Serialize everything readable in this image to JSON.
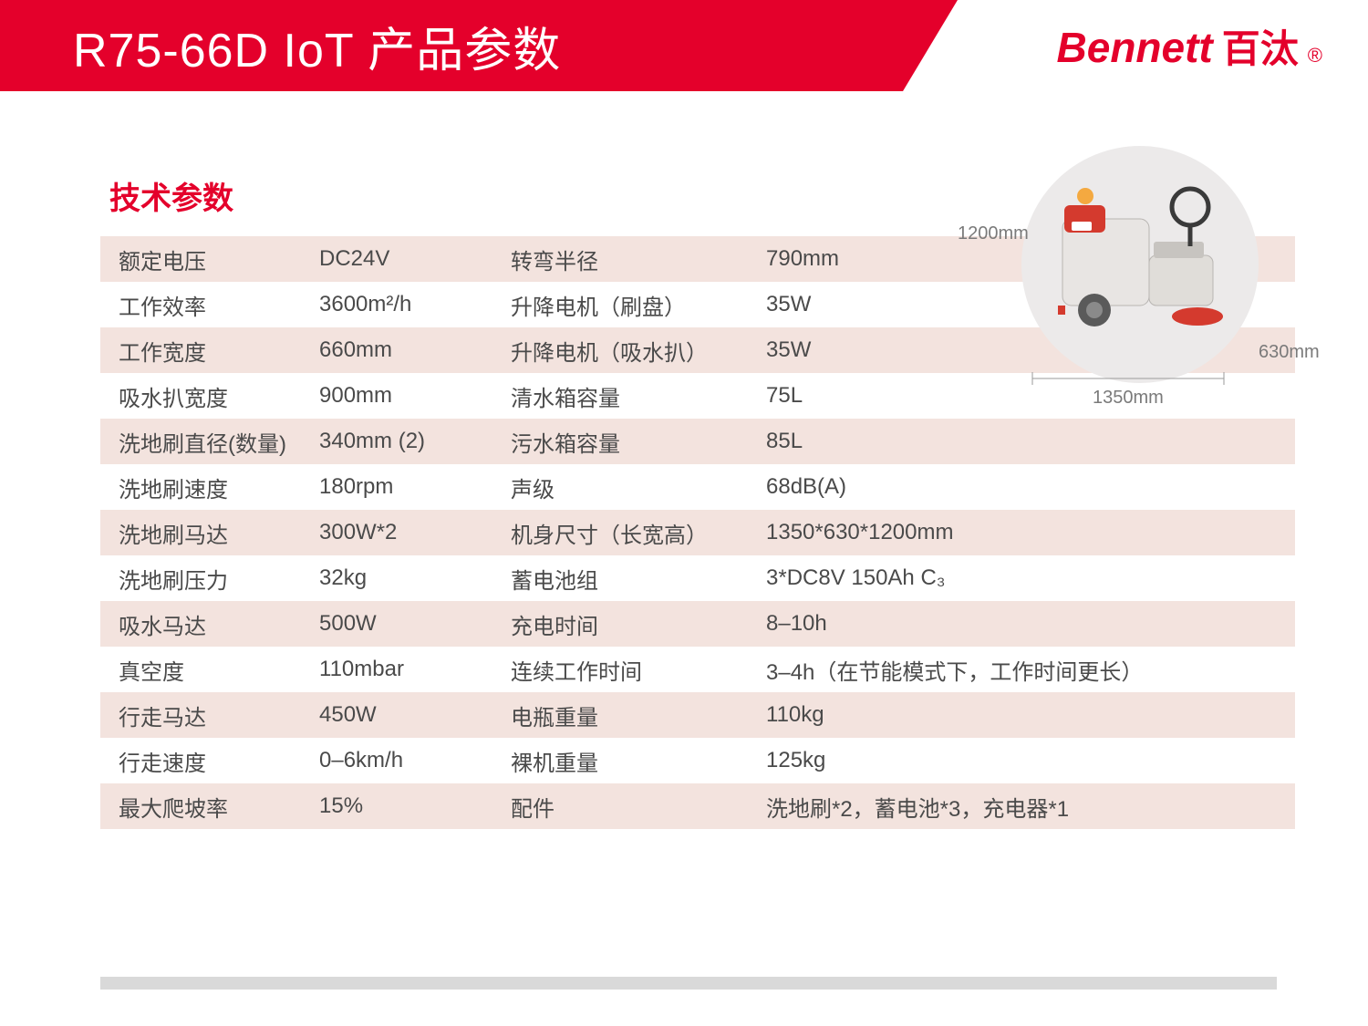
{
  "header": {
    "title": "R75-66D IoT 产品参数",
    "brand_en": "Bennett",
    "brand_cn": "百汰",
    "brand_r": "®"
  },
  "section_title": "技术参数",
  "dimensions": {
    "height": "1200mm",
    "length": "1350mm",
    "width": "630mm"
  },
  "specs": [
    {
      "l1": "额定电压",
      "v1": "DC24V",
      "l2": "转弯半径",
      "v2": "790mm"
    },
    {
      "l1": "工作效率",
      "v1": "3600m²/h",
      "l2": "升降电机（刷盘）",
      "v2": "35W"
    },
    {
      "l1": "工作宽度",
      "v1": "660mm",
      "l2": "升降电机（吸水扒）",
      "v2": "35W"
    },
    {
      "l1": "吸水扒宽度",
      "v1": "900mm",
      "l2": "清水箱容量",
      "v2": "75L"
    },
    {
      "l1": "洗地刷直径(数量)",
      "v1": "340mm (2)",
      "l2": "污水箱容量",
      "v2": "85L"
    },
    {
      "l1": "洗地刷速度",
      "v1": "180rpm",
      "l2": "声级",
      "v2": "68dB(A)"
    },
    {
      "l1": "洗地刷马达",
      "v1": "300W*2",
      "l2": "机身尺寸（长宽高）",
      "v2": "1350*630*1200mm"
    },
    {
      "l1": "洗地刷压力",
      "v1": "32kg",
      "l2": "蓄电池组",
      "v2": "3*DC8V 150Ah C₃"
    },
    {
      "l1": "吸水马达",
      "v1": "500W",
      "l2": "充电时间",
      "v2": "8–10h"
    },
    {
      "l1": "真空度",
      "v1": "110mbar",
      "l2": "连续工作时间",
      "v2": "3–4h（在节能模式下，工作时间更长）"
    },
    {
      "l1": "行走马达",
      "v1": "450W",
      "l2": "电瓶重量",
      "v2": "110kg"
    },
    {
      "l1": "行走速度",
      "v1": "0–6km/h",
      "l2": "裸机重量",
      "v2": "125kg"
    },
    {
      "l1": "最大爬坡率",
      "v1": "15%",
      "l2": "配件",
      "v2": "洗地刷*2，蓄电池*3，充电器*1"
    }
  ],
  "colors": {
    "brand_red": "#e4002b",
    "row_odd": "#f3e3de",
    "row_even": "#ffffff",
    "text": "#4a4a4a",
    "dim_text": "#7a7a7a",
    "circle_bg": "#eceaea",
    "bottom_bar": "#d9d9d9"
  }
}
